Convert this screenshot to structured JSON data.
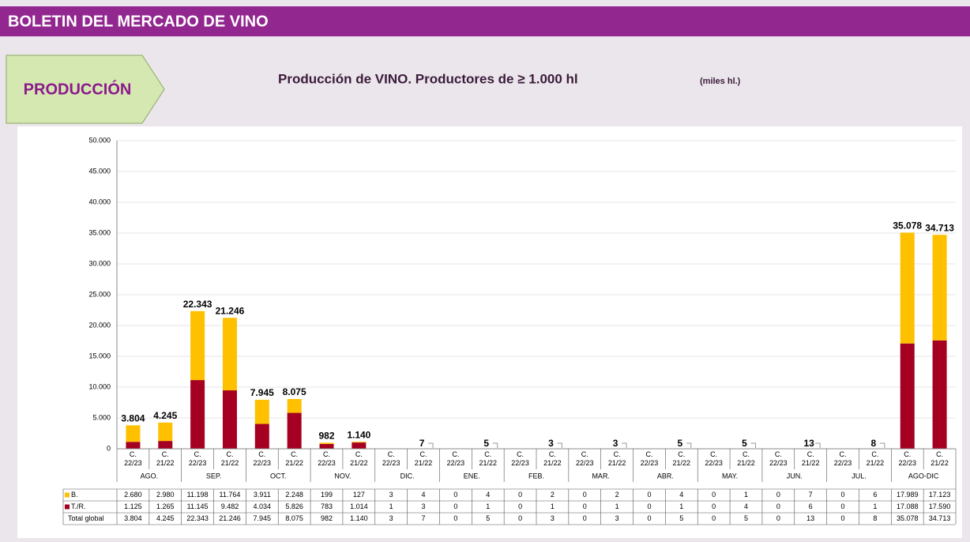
{
  "header": {
    "title": "BOLETIN DEL MERCADO DE VINO"
  },
  "section": {
    "label": "PRODUCCIÓN"
  },
  "chart_data": {
    "type": "bar",
    "stacked": true,
    "title": "Producción de VINO. Productores de ≥ 1.000 hl",
    "subtitle": "(miles hl.)",
    "categories": [
      "C.\n22/23",
      "C.\n21/22",
      "C.\n22/23",
      "C.\n21/22",
      "C.\n22/23",
      "C.\n21/22",
      "C.\n22/23",
      "C.\n21/22",
      "C.\n22/23",
      "C.\n21/22",
      "C.\n22/23",
      "C.\n21/22",
      "C.\n22/23",
      "C.\n21/22",
      "C.\n22/23",
      "C.\n21/22",
      "C.\n22/23",
      "C.\n21/22",
      "C.\n22/23",
      "C.\n21/22",
      "C.\n22/23",
      "C.\n21/22",
      "C.\n22/23",
      "C.\n21/22",
      "C.\n22/23",
      "C.\n21/22"
    ],
    "groups": [
      "AGO.",
      "SEP.",
      "OCT.",
      "NOV.",
      "DIC.",
      "ENE.",
      "FEB.",
      "MAR.",
      "ABR.",
      "MAY.",
      "JUN.",
      "JUL.",
      "AGO-DIC"
    ],
    "series": [
      {
        "name": "T./R.",
        "color": "#a50021",
        "values": [
          1125,
          1265,
          11145,
          9482,
          4034,
          5826,
          783,
          1014,
          1,
          3,
          0,
          1,
          0,
          1,
          0,
          1,
          0,
          1,
          0,
          4,
          0,
          6,
          0,
          1,
          17088,
          17590
        ],
        "value_labels": [
          "1.125",
          "1.265",
          "11.145",
          "9.482",
          "4.034",
          "5.826",
          "783",
          "1.014",
          "1",
          "3",
          "0",
          "1",
          "0",
          "1",
          "0",
          "1",
          "0",
          "1",
          "0",
          "4",
          "0",
          "6",
          "0",
          "1",
          "17.088",
          "17.590"
        ]
      },
      {
        "name": "B.",
        "color": "#ffc000",
        "values": [
          2680,
          2980,
          11198,
          11764,
          3911,
          2248,
          199,
          127,
          3,
          4,
          0,
          4,
          0,
          2,
          0,
          2,
          0,
          4,
          0,
          1,
          0,
          7,
          0,
          6,
          17989,
          17123
        ],
        "value_labels": [
          "2.680",
          "2.980",
          "11.198",
          "11.764",
          "3.911",
          "2.248",
          "199",
          "127",
          "3",
          "4",
          "0",
          "4",
          "0",
          "2",
          "0",
          "2",
          "0",
          "4",
          "0",
          "1",
          "0",
          "7",
          "0",
          "6",
          "17.989",
          "17.123"
        ]
      }
    ],
    "totals": {
      "name": "Total global",
      "values": [
        3804,
        4245,
        22343,
        21246,
        7945,
        8075,
        982,
        1140,
        3,
        7,
        0,
        5,
        0,
        3,
        0,
        3,
        0,
        5,
        0,
        5,
        0,
        13,
        0,
        8,
        35078,
        34713
      ],
      "value_labels": [
        "3.804",
        "4.245",
        "22.343",
        "21.246",
        "7.945",
        "8.075",
        "982",
        "1.140",
        "3",
        "7",
        "0",
        "5",
        "0",
        "3",
        "0",
        "3",
        "0",
        "5",
        "0",
        "5",
        "0",
        "13",
        "0",
        "8",
        "35.078",
        "34.713"
      ]
    },
    "ylim": [
      0,
      50000
    ],
    "yticks": [
      {
        "value": 0,
        "label": "0"
      },
      {
        "value": 5000,
        "label": "5.000"
      },
      {
        "value": 10000,
        "label": "10.000"
      },
      {
        "value": 15000,
        "label": "15.000"
      },
      {
        "value": 20000,
        "label": "20.000"
      },
      {
        "value": 25000,
        "label": "25.000"
      },
      {
        "value": 30000,
        "label": "30.000"
      },
      {
        "value": 35000,
        "label": "35.000"
      },
      {
        "value": 40000,
        "label": "40.000"
      },
      {
        "value": 45000,
        "label": "45.000"
      },
      {
        "value": 50000,
        "label": "50.000"
      }
    ],
    "grid": true
  }
}
